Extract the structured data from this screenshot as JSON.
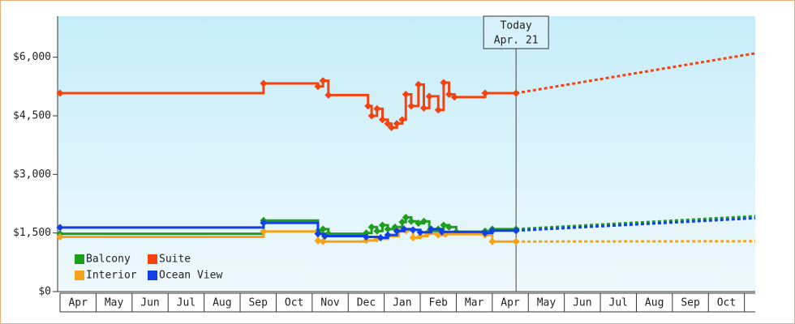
{
  "chart_data": {
    "type": "line",
    "step": true,
    "categories": [
      "Apr",
      "May",
      "Jun",
      "Jul",
      "Aug",
      "Sep",
      "Oct",
      "Nov",
      "Dec",
      "Jan",
      "Feb",
      "Mar",
      "Apr",
      "May",
      "Jun",
      "Jul",
      "Aug",
      "Sep",
      "Oct"
    ],
    "xlim": [
      0,
      19.3
    ],
    "ylim": [
      0,
      7050
    ],
    "yticks": [
      {
        "value": 0,
        "label": "$0"
      },
      {
        "value": 1500,
        "label": "$1,500"
      },
      {
        "value": 3000,
        "label": "$3,000"
      },
      {
        "value": 4500,
        "label": "$4,500"
      },
      {
        "value": 6000,
        "label": "$6,000"
      }
    ],
    "annotation": {
      "label": "Today",
      "date": "Apr. 21",
      "x": 12.66
    },
    "legend": "bottom-left",
    "series": [
      {
        "name": "Balcony",
        "color": "#1e9e1e",
        "x": [
          0,
          5.65,
          7.16,
          7.3,
          7.45,
          8.5,
          8.65,
          8.8,
          8.95,
          9.1,
          9.3,
          9.5,
          9.6,
          9.75,
          9.95,
          10.1,
          10.25,
          10.5,
          10.65,
          10.8,
          11.0,
          11.8,
          12.0,
          12.66
        ],
        "values": [
          1480,
          1820,
          1550,
          1600,
          1480,
          1500,
          1650,
          1550,
          1700,
          1600,
          1650,
          1780,
          1900,
          1800,
          1750,
          1800,
          1550,
          1600,
          1700,
          1650,
          1530,
          1550,
          1600,
          1600
        ],
        "forecast_x": [
          12.66,
          19.3
        ],
        "forecast_values": [
          1600,
          1930
        ]
      },
      {
        "name": "Suite",
        "color": "#f5420f",
        "x": [
          0,
          5.65,
          7.16,
          7.3,
          7.45,
          8.55,
          8.65,
          8.8,
          8.95,
          9.1,
          9.2,
          9.35,
          9.5,
          9.6,
          9.75,
          9.95,
          10.1,
          10.25,
          10.5,
          10.65,
          10.8,
          10.95,
          11.8,
          12.66
        ],
        "values": [
          5080,
          5330,
          5250,
          5400,
          5030,
          4750,
          4500,
          4680,
          4400,
          4300,
          4200,
          4300,
          4400,
          5050,
          4750,
          5300,
          4700,
          5000,
          4650,
          5350,
          5050,
          4980,
          5080,
          5080
        ],
        "forecast_x": [
          12.66,
          19.3
        ],
        "forecast_values": [
          5080,
          6100
        ]
      },
      {
        "name": "Interior",
        "color": "#f5a31a",
        "x": [
          0,
          5.65,
          7.16,
          7.3,
          8.5,
          8.8,
          9.1,
          9.4,
          9.6,
          9.8,
          10.0,
          10.2,
          10.5,
          10.7,
          11.8,
          12.0,
          12.66
        ],
        "values": [
          1400,
          1540,
          1300,
          1280,
          1310,
          1350,
          1420,
          1550,
          1560,
          1380,
          1420,
          1480,
          1450,
          1470,
          1450,
          1280,
          1280
        ],
        "forecast_x": [
          12.66,
          19.3
        ],
        "forecast_values": [
          1280,
          1290
        ]
      },
      {
        "name": "Ocean View",
        "color": "#1040e6",
        "x": [
          0,
          5.65,
          7.16,
          7.35,
          8.5,
          8.9,
          9.1,
          9.35,
          9.55,
          9.8,
          10.0,
          10.3,
          10.6,
          11.8,
          12.0,
          12.66
        ],
        "values": [
          1640,
          1760,
          1480,
          1420,
          1400,
          1380,
          1450,
          1550,
          1600,
          1580,
          1520,
          1600,
          1530,
          1500,
          1560,
          1560
        ],
        "forecast_x": [
          12.66,
          19.3
        ],
        "forecast_values": [
          1560,
          1880
        ]
      }
    ]
  }
}
